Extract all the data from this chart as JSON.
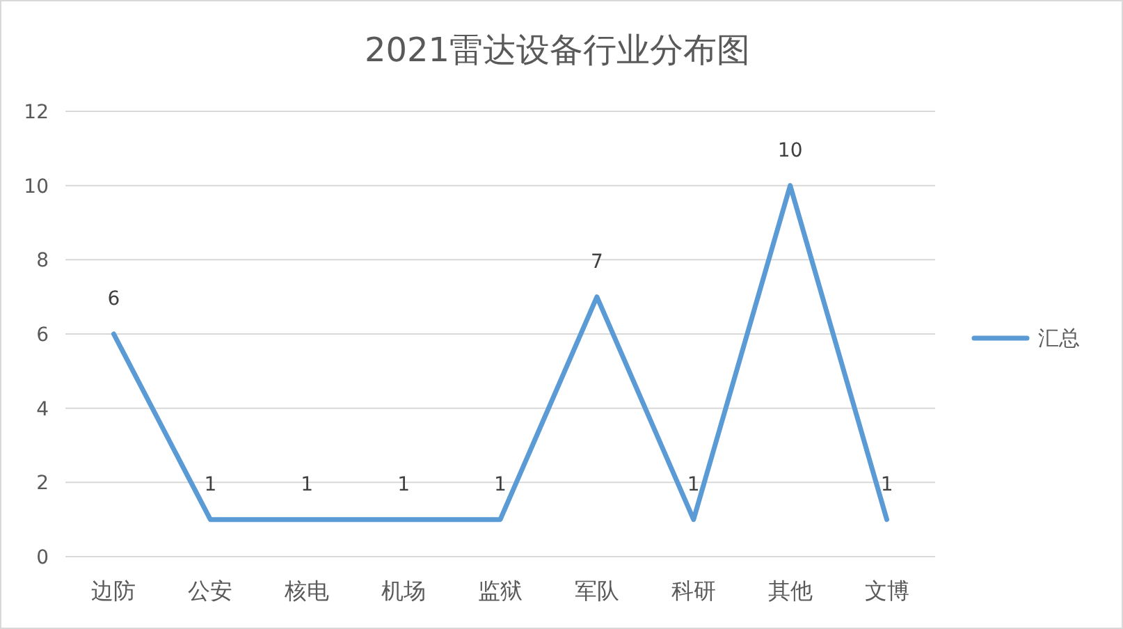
{
  "chart_data": {
    "type": "line",
    "title": "2021雷达设备行业分布图",
    "categories": [
      "边防",
      "公安",
      "核电",
      "机场",
      "监狱",
      "军队",
      "科研",
      "其他",
      "文博"
    ],
    "series": [
      {
        "name": "汇总",
        "color": "#5b9bd5",
        "values": [
          6,
          1,
          1,
          1,
          1,
          7,
          1,
          10,
          1
        ]
      }
    ],
    "ylim": [
      0,
      12
    ],
    "yticks": [
      0,
      2,
      4,
      6,
      8,
      10,
      12
    ],
    "grid": "y",
    "legend": "right",
    "data_labels": true,
    "marker": "none",
    "line_style": "solid"
  }
}
